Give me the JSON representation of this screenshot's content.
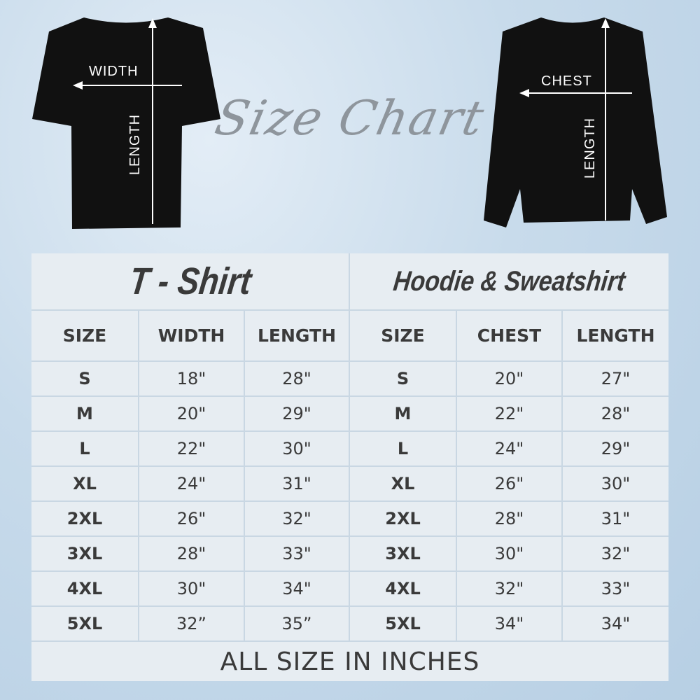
{
  "title": "Size Chart",
  "tshirt": {
    "label": "T - Shirt",
    "width_label": "WIDTH",
    "length_label": "LENGTH",
    "columns": [
      "SIZE",
      "WIDTH",
      "LENGTH"
    ],
    "rows": [
      [
        "S",
        "18\"",
        "28\""
      ],
      [
        "M",
        "20\"",
        "29\""
      ],
      [
        "L",
        "22\"",
        "30\""
      ],
      [
        "XL",
        "24\"",
        "31\""
      ],
      [
        "2XL",
        "26\"",
        "32\""
      ],
      [
        "3XL",
        "28\"",
        "33\""
      ],
      [
        "4XL",
        "30\"",
        "34\""
      ],
      [
        "5XL",
        "32”",
        "35”"
      ]
    ]
  },
  "hoodie": {
    "label": "Hoodie & Sweatshirt",
    "chest_label": "CHEST",
    "length_label": "LENGTH",
    "columns": [
      "SIZE",
      "CHEST",
      "LENGTH"
    ],
    "rows": [
      [
        "S",
        "20\"",
        "27\""
      ],
      [
        "M",
        "22\"",
        "28\""
      ],
      [
        "L",
        "24\"",
        "29\""
      ],
      [
        "XL",
        "26\"",
        "30\""
      ],
      [
        "2XL",
        "28\"",
        "31\""
      ],
      [
        "3XL",
        "30\"",
        "32\""
      ],
      [
        "4XL",
        "32\"",
        "33\""
      ],
      [
        "5XL",
        "34\"",
        "34\""
      ]
    ]
  },
  "footer": "ALL SIZE IN INCHES"
}
